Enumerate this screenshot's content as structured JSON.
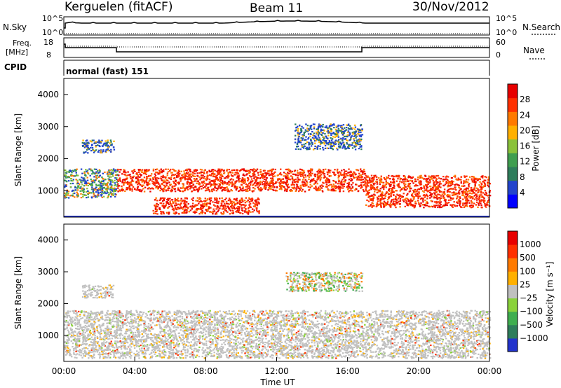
{
  "header": {
    "station": "Kerguelen (fitACF)",
    "beam": "Beam 11",
    "date": "30/Nov/2012"
  },
  "sky_panel": {
    "label": "N.Sky",
    "left_ticks": [
      "10^5",
      "10^0"
    ],
    "right_ticks": [
      "10^5",
      "10^0"
    ],
    "right_label": "N.Search"
  },
  "freq_panel": {
    "label_line1": "Freq.",
    "label_line2": "[MHz]",
    "left_ticks": [
      "18",
      "8"
    ],
    "right_ticks": [
      "60",
      "0"
    ],
    "right_label": "Nave"
  },
  "cpid_panel": {
    "label": "CPID",
    "value": "normal (fast) 151"
  },
  "x_axis": {
    "title": "Time UT",
    "ticks": [
      "00:00",
      "04:00",
      "08:00",
      "12:00",
      "16:00",
      "20:00",
      "00:00"
    ]
  },
  "colors": {
    "power_scale": [
      "#0000ff",
      "#2244cc",
      "#2e7d5b",
      "#3f9e4f",
      "#8ac23a",
      "#ffb000",
      "#ff7a00",
      "#ff3000",
      "#e80000"
    ],
    "velocity_scale": [
      "#2233cc",
      "#2e7d5b",
      "#3fae4f",
      "#8ad23a",
      "#c0c0c0",
      "#ffb000",
      "#ff7a00",
      "#ff3000",
      "#e80000"
    ]
  },
  "chart_data": [
    {
      "type": "heatmap",
      "title": "",
      "ylabel": "Slant Range [km]",
      "xlabel": "",
      "ylim": [
        180,
        4500
      ],
      "yticks": [
        "4000",
        "3000",
        "2000",
        "1000"
      ],
      "colorbar": {
        "label": "Power [dB]",
        "ticks": [
          "28",
          "24",
          "20",
          "16",
          "12",
          "8",
          "4"
        ],
        "range": [
          0,
          30
        ]
      },
      "features": [
        {
          "t_start": 0.0,
          "t_end": 3.0,
          "r_low": 800,
          "r_high": 1700,
          "level": "low-mid"
        },
        {
          "t_start": 3.0,
          "t_end": 17.0,
          "r_low": 1000,
          "r_high": 1700,
          "level": "high"
        },
        {
          "t_start": 5.0,
          "t_end": 11.0,
          "r_low": 300,
          "r_high": 800,
          "level": "high"
        },
        {
          "t_start": 17.0,
          "t_end": 24.0,
          "r_low": 500,
          "r_high": 1500,
          "level": "high"
        },
        {
          "t_start": 1.0,
          "t_end": 2.8,
          "r_low": 2200,
          "r_high": 2600,
          "level": "low"
        },
        {
          "t_start": 13.0,
          "t_end": 16.8,
          "r_low": 2300,
          "r_high": 3100,
          "level": "low"
        }
      ]
    },
    {
      "type": "heatmap",
      "title": "",
      "ylabel": "Slant Range [km]",
      "xlabel": "Time UT",
      "ylim": [
        180,
        4500
      ],
      "yticks": [
        "4000",
        "3000",
        "2000",
        "1000"
      ],
      "colorbar": {
        "label": "Velocity [m s⁻¹]",
        "ticks": [
          "1000",
          "500",
          "100",
          "25",
          "−25",
          "−100",
          "−500",
          "−1000"
        ],
        "range": [
          -1000,
          1000
        ]
      },
      "features": [
        {
          "t_start": 0.0,
          "t_end": 24.0,
          "r_low": 300,
          "r_high": 1800,
          "level": "near-zero"
        },
        {
          "t_start": 1.0,
          "t_end": 2.8,
          "r_low": 2200,
          "r_high": 2600,
          "level": "near-zero"
        },
        {
          "t_start": 12.5,
          "t_end": 16.8,
          "r_low": 2400,
          "r_high": 3000,
          "level": "mixed"
        }
      ]
    }
  ]
}
